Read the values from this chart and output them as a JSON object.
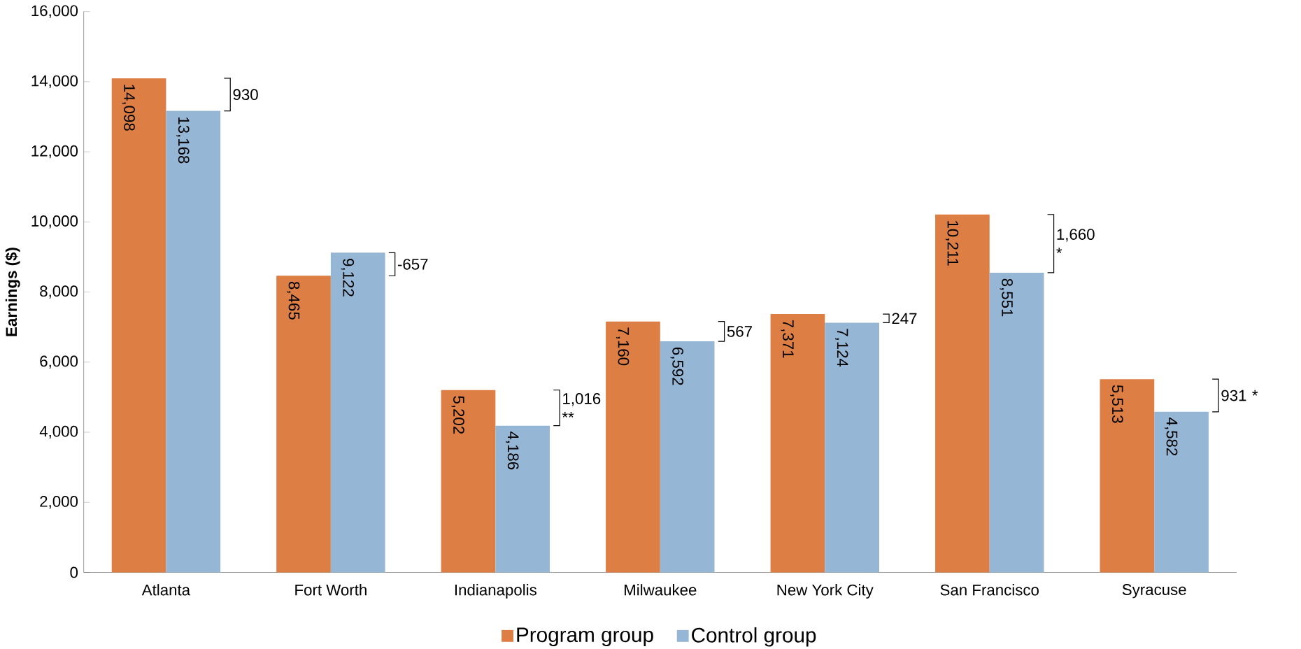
{
  "chart_data": {
    "type": "bar",
    "ylabel": "Earnings ($)",
    "categories": [
      "Atlanta",
      "Fort Worth",
      "Indianapolis",
      "Milwaukee",
      "New York City",
      "San Francisco",
      "Syracuse"
    ],
    "series": [
      {
        "name": "Program group",
        "color": "#dd7f45",
        "values": [
          14098,
          8465,
          5202,
          7160,
          7371,
          10211,
          5513
        ],
        "value_labels": [
          "14,098",
          "8,465",
          "5,202",
          "7,160",
          "7,371",
          "10,211",
          "5,513"
        ]
      },
      {
        "name": "Control group",
        "color": "#95b6d4",
        "values": [
          13168,
          9122,
          4186,
          6592,
          7124,
          8551,
          4582
        ],
        "value_labels": [
          "13,168",
          "9,122",
          "4,186",
          "6,592",
          "7,124",
          "8,551",
          "4,582"
        ]
      }
    ],
    "ylim": [
      0,
      16000
    ],
    "yticks": [
      {
        "value": 0,
        "label": "0"
      },
      {
        "value": 2000,
        "label": "2,000"
      },
      {
        "value": 4000,
        "label": "4,000"
      },
      {
        "value": 6000,
        "label": "6,000"
      },
      {
        "value": 8000,
        "label": "8,000"
      },
      {
        "value": 10000,
        "label": "10,000"
      },
      {
        "value": 12000,
        "label": "12,000"
      },
      {
        "value": 14000,
        "label": "14,000"
      },
      {
        "value": 16000,
        "label": "16,000"
      }
    ],
    "annotations": [
      "930",
      "-657",
      "1,016 **",
      "567",
      "247",
      "1,660 *",
      "931 *"
    ],
    "grid": false,
    "legend": "bottom"
  }
}
